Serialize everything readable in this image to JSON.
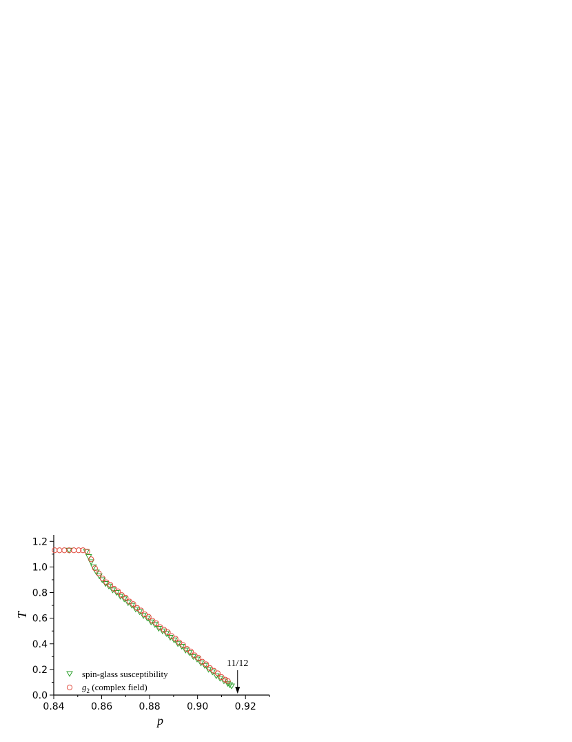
{
  "chart_data": {
    "type": "scatter",
    "xlabel": "p",
    "ylabel": "T",
    "xlim": [
      0.84,
      0.93
    ],
    "ylim": [
      0.0,
      1.25
    ],
    "x_ticks": [
      "0.84",
      "0.86",
      "0.88",
      "0.90",
      "0.92"
    ],
    "y_ticks": [
      "0.0",
      "0.2",
      "0.4",
      "0.6",
      "0.8",
      "1.0",
      "1.2"
    ],
    "grid": false,
    "legend_position": "bottom-left",
    "series": [
      {
        "name": "spin-glass susceptibility",
        "marker": "triangle-down",
        "color": "#2ca02c",
        "x": [
          0.8464,
          0.8536,
          0.8546,
          0.8556,
          0.8566,
          0.8578,
          0.859,
          0.8602,
          0.8616,
          0.863,
          0.8646,
          0.8662,
          0.8678,
          0.8694,
          0.871,
          0.8726,
          0.8742,
          0.8758,
          0.8774,
          0.879,
          0.8806,
          0.8822,
          0.8838,
          0.8854,
          0.887,
          0.8886,
          0.8902,
          0.8918,
          0.8934,
          0.895,
          0.8966,
          0.8982,
          0.8998,
          0.9014,
          0.903,
          0.9046,
          0.9062,
          0.9078,
          0.9094,
          0.911,
          0.9126,
          0.9134,
          0.9142
        ],
        "y": [
          1.13,
          1.12,
          1.08,
          1.04,
          1.0,
          0.96,
          0.93,
          0.9,
          0.87,
          0.85,
          0.82,
          0.8,
          0.77,
          0.75,
          0.72,
          0.7,
          0.67,
          0.65,
          0.62,
          0.6,
          0.57,
          0.55,
          0.52,
          0.5,
          0.48,
          0.45,
          0.43,
          0.4,
          0.38,
          0.35,
          0.33,
          0.3,
          0.28,
          0.25,
          0.23,
          0.2,
          0.18,
          0.15,
          0.13,
          0.11,
          0.09,
          0.08,
          0.07
        ]
      },
      {
        "name": "g₂ (complex field)",
        "marker": "circle",
        "color": "#e0483a",
        "x": [
          0.8404,
          0.8424,
          0.8444,
          0.8464,
          0.8484,
          0.8504,
          0.8522,
          0.854,
          0.8556,
          0.8572,
          0.8588,
          0.8604,
          0.862,
          0.8636,
          0.8652,
          0.8668,
          0.8684,
          0.87,
          0.8716,
          0.8732,
          0.8748,
          0.8764,
          0.878,
          0.8796,
          0.8812,
          0.8828,
          0.8844,
          0.886,
          0.8876,
          0.8892,
          0.8908,
          0.8924,
          0.894,
          0.8956,
          0.8972,
          0.8988,
          0.9004,
          0.902,
          0.9036,
          0.9052,
          0.9068,
          0.9084,
          0.91,
          0.9116,
          0.9126
        ],
        "y": [
          1.13,
          1.13,
          1.13,
          1.13,
          1.13,
          1.13,
          1.13,
          1.12,
          1.06,
          0.99,
          0.95,
          0.91,
          0.88,
          0.86,
          0.83,
          0.81,
          0.78,
          0.76,
          0.73,
          0.71,
          0.68,
          0.66,
          0.63,
          0.61,
          0.58,
          0.56,
          0.53,
          0.51,
          0.49,
          0.46,
          0.44,
          0.41,
          0.39,
          0.36,
          0.34,
          0.31,
          0.29,
          0.26,
          0.24,
          0.21,
          0.19,
          0.17,
          0.14,
          0.12,
          0.11
        ]
      }
    ],
    "annotations": [
      {
        "text": "11/12",
        "x": 0.9167,
        "y": 0.0,
        "arrow": true
      }
    ],
    "legend_items": [
      {
        "label": "spin-glass susceptibility",
        "subscript": ""
      },
      {
        "label": "g",
        "subscript": "2",
        "suffix": " (complex field)"
      }
    ]
  }
}
